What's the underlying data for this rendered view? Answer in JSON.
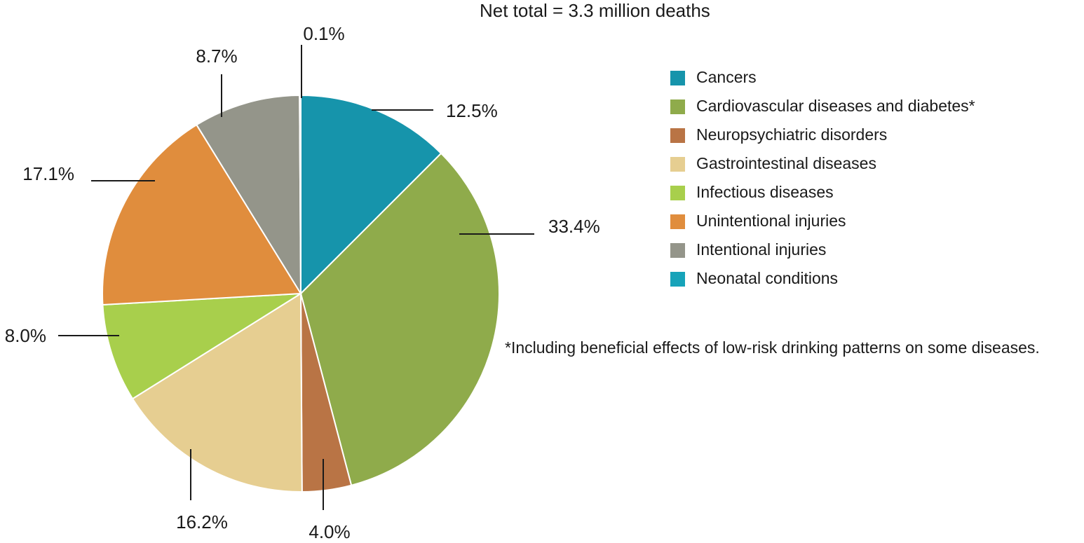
{
  "chart_data": {
    "type": "pie",
    "title": "Net total = 3.3 million deaths",
    "footnote": "*Including beneficial effects of low-risk drinking patterns on some diseases.",
    "legend_position": "right",
    "slices": [
      {
        "name": "Cancers",
        "value": 12.5,
        "label": "12.5%",
        "color": "#1694ab"
      },
      {
        "name": "Cardiovascular diseases and diabetes*",
        "value": 33.4,
        "label": "33.4%",
        "color": "#8fab4b"
      },
      {
        "name": "Neuropsychiatric disorders",
        "value": 4.0,
        "label": "4.0%",
        "color": "#b97445"
      },
      {
        "name": "Gastrointestinal diseases",
        "value": 16.2,
        "label": "16.2%",
        "color": "#e6ce91"
      },
      {
        "name": "Infectious diseases",
        "value": 8.0,
        "label": "8.0%",
        "color": "#a8cf4c"
      },
      {
        "name": "Unintentional injuries",
        "value": 17.1,
        "label": "17.1%",
        "color": "#e08d3d"
      },
      {
        "name": "Intentional injuries",
        "value": 8.7,
        "label": "8.7%",
        "color": "#94958a"
      },
      {
        "name": "Neonatal conditions",
        "value": 0.1,
        "label": "0.1%",
        "color": "#17a3b9"
      }
    ]
  }
}
